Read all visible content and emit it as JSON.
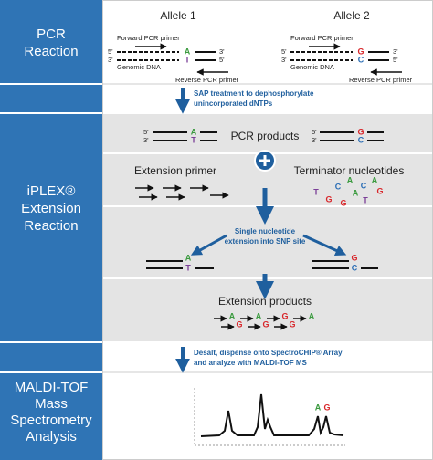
{
  "sidebar": {
    "pcr": [
      "PCR",
      "Reaction"
    ],
    "iplex": [
      "iPLEX®",
      "Extension",
      "Reaction"
    ],
    "maldi": [
      "MALDI-TOF",
      "Mass",
      "Spectrometry",
      "Analysis"
    ]
  },
  "pcr": {
    "five": "5'",
    "three": "3'",
    "forward": "Forward PCR primer",
    "genomic": "Genomic DNA",
    "reverse": "Reverse PCR primer",
    "alleles": [
      {
        "title": "Allele 1",
        "top": "A",
        "bottom": "T"
      },
      {
        "title": "Allele 2",
        "top": "G",
        "bottom": "C"
      }
    ]
  },
  "steps": [
    [
      "SAP treatment to dephosphorylate",
      "unincorporated dNTPs"
    ],
    [
      "Desalt, dispense onto SpectroCHIP® Array",
      "and analyze with MALDI-TOF MS"
    ]
  ],
  "iplex": {
    "products_title": "PCR products",
    "primer_title": "Extension primer",
    "terminator_title": "Terminator nucleotides",
    "terminators": [
      "T",
      "G",
      "C",
      "A",
      "G",
      "A",
      "T",
      "C",
      "A",
      "G"
    ],
    "extension_note": [
      "Single nucleotide",
      "extension into SNP site"
    ],
    "ext_products_title": "Extension products",
    "ext_products": [
      [
        "A",
        "A",
        "G",
        "A"
      ],
      [
        "G",
        "G",
        "G"
      ]
    ]
  },
  "maldi": {
    "peaks": [
      "A",
      "G"
    ]
  },
  "colors": {
    "A": "#3a9a3e",
    "G": "#d8262a",
    "C": "#2a6db5",
    "T": "#7b3f98"
  }
}
